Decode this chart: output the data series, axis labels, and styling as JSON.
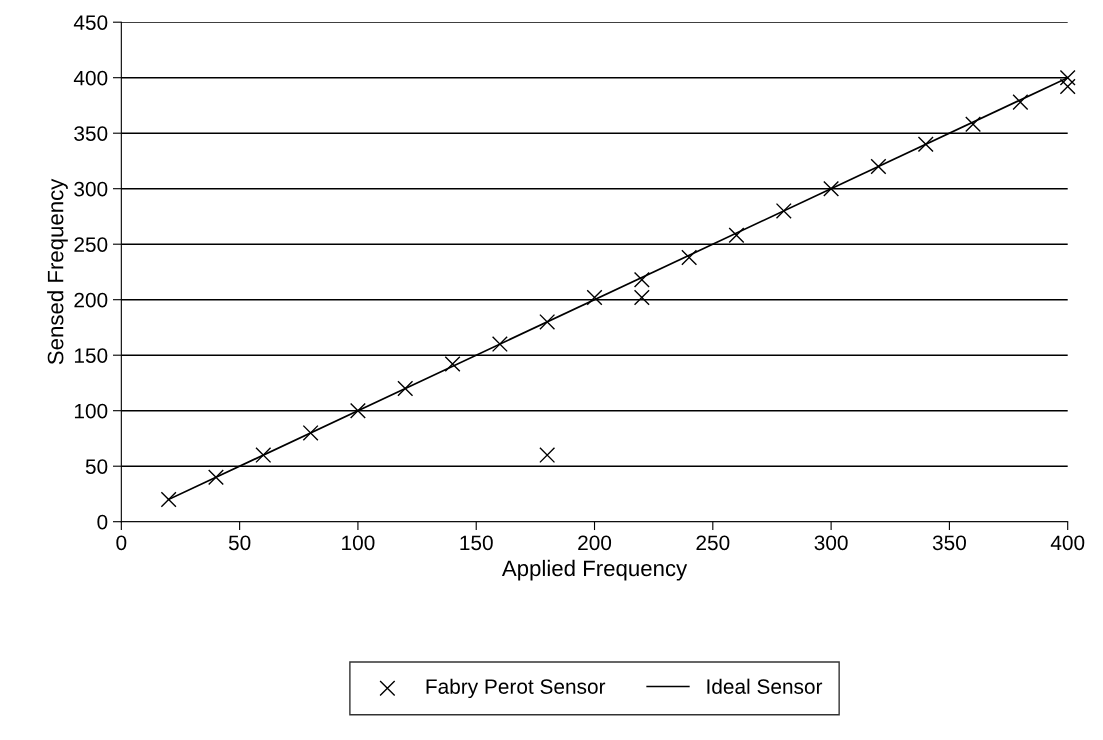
{
  "chart_data": {
    "type": "scatter",
    "xlabel": "Applied Frequency",
    "ylabel": "Sensed Frequency",
    "series": [
      {
        "name": "Fabry Perot Sensor",
        "marker": "cross",
        "color": "#000000",
        "x": [
          20,
          40,
          60,
          80,
          100,
          120,
          140,
          160,
          180,
          180,
          200,
          220,
          220,
          240,
          260,
          280,
          300,
          320,
          340,
          360,
          380,
          400,
          400
        ],
        "values": [
          20,
          40,
          60,
          80,
          100,
          120,
          142,
          160,
          180,
          60,
          202,
          218,
          202,
          238,
          258,
          280,
          300,
          320,
          340,
          358,
          378,
          400,
          392
        ]
      },
      {
        "name": "Ideal Sensor",
        "type": "line",
        "marker": "none",
        "line_style": "solid",
        "color": "#000000",
        "x": [
          20,
          400
        ],
        "values": [
          20,
          400
        ]
      }
    ],
    "xlim": [
      0,
      400
    ],
    "xticks": [
      0,
      50,
      100,
      150,
      200,
      250,
      300,
      350,
      400
    ],
    "ylim": [
      0,
      450
    ],
    "yticks": [
      0,
      50,
      100,
      150,
      200,
      250,
      300,
      350,
      400,
      450
    ],
    "grid": "y",
    "legend": "bottom"
  }
}
